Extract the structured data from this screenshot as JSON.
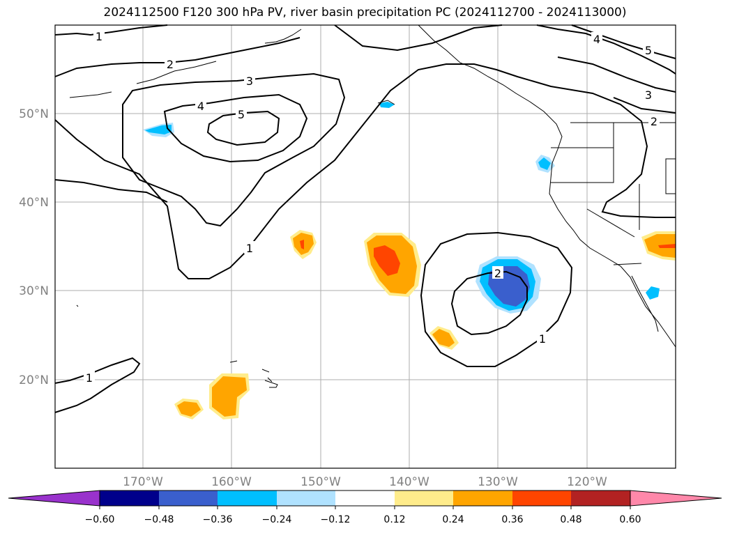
{
  "title": "2024112500 F120 300 hPa PV, river basin precipitation PC (2024112700 - 2024113000)",
  "lat_labels": [
    "50°N",
    "40°N",
    "30°N",
    "20°N"
  ],
  "lon_labels": [
    "170°W",
    "160°W",
    "150°W",
    "140°W",
    "130°W",
    "120°W"
  ],
  "contour_labels": [
    "1",
    "2",
    "3",
    "4",
    "5",
    "1",
    "1",
    "2",
    "1",
    "4",
    "5",
    "3",
    "2"
  ],
  "colorbar": {
    "ticks": [
      "−0.60",
      "−0.48",
      "−0.36",
      "−0.24",
      "−0.12",
      "0.12",
      "0.24",
      "0.36",
      "0.48",
      "0.60"
    ],
    "colors": [
      "#9932cc",
      "#00008b",
      "#3a5fcd",
      "#00bfff",
      "#b0e2ff",
      "#ffffff",
      "#ffec8b",
      "#ffa500",
      "#ff4500",
      "#b22222",
      "#ff88aa",
      "#ff88aa"
    ]
  },
  "colors": {
    "pv_contour": "#000000",
    "grid": "#999999",
    "coast": "#000000"
  }
}
